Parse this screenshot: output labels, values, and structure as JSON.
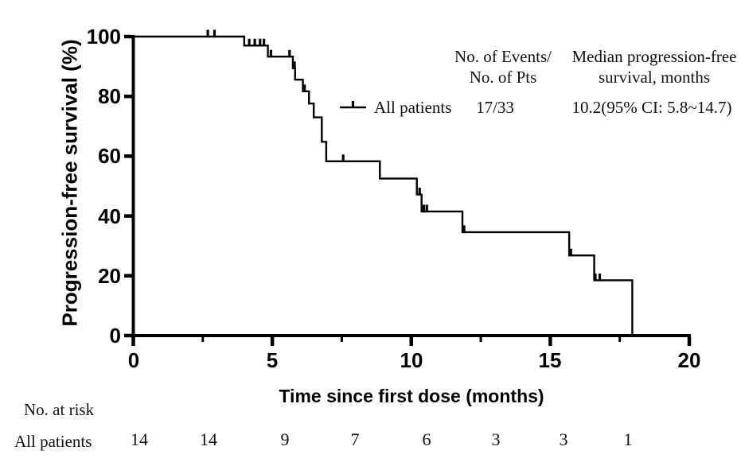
{
  "chart_data": {
    "type": "line",
    "subtype": "kaplan-meier-step-curve",
    "title": "",
    "xlabel": "Time since first dose (months)",
    "ylabel": "Progression-free survival (%)",
    "xlim": [
      0,
      20
    ],
    "ylim": [
      0,
      100
    ],
    "xticks": [
      0,
      5,
      10,
      15,
      20
    ],
    "xminorticks": [
      2.5,
      7.5,
      12.5,
      17.5
    ],
    "yticks": [
      100,
      80,
      60,
      40,
      20,
      0
    ],
    "grid": false,
    "legend_position": "top-right-inside",
    "legend": {
      "col1_header_line1": "No. of Events/",
      "col1_header_line2": "No. of Pts",
      "col2_header_line1": "Median progression-free",
      "col2_header_line2": "survival, months"
    },
    "series": [
      {
        "name": "All patients",
        "events_over_pts": "17/33",
        "median_pfs": "10.2(95% CI: 5.8~14.7)",
        "color": "#000000",
        "start": [
          0,
          100
        ],
        "steps": [
          [
            3.99,
            97.0
          ],
          [
            4.84,
            93.3
          ],
          [
            5.74,
            89.4
          ],
          [
            5.82,
            85.6
          ],
          [
            6.1,
            81.7
          ],
          [
            6.32,
            77.6
          ],
          [
            6.49,
            73.0
          ],
          [
            6.78,
            64.8
          ],
          [
            6.94,
            58.3
          ],
          [
            8.87,
            52.5
          ],
          [
            10.2,
            47.2
          ],
          [
            10.37,
            41.5
          ],
          [
            11.84,
            34.6
          ],
          [
            15.68,
            26.8
          ],
          [
            16.58,
            18.5
          ],
          [
            17.95,
            0
          ]
        ],
        "censors": [
          [
            2.68,
            100
          ],
          [
            2.92,
            100
          ],
          [
            4.17,
            97.0
          ],
          [
            4.37,
            97.0
          ],
          [
            4.56,
            97.0
          ],
          [
            4.7,
            97.0
          ],
          [
            4.95,
            93.3
          ],
          [
            5.62,
            93.3
          ],
          [
            5.8,
            89.4
          ],
          [
            6.16,
            81.7
          ],
          [
            7.55,
            58.3
          ],
          [
            10.3,
            47.2
          ],
          [
            10.45,
            41.5
          ],
          [
            10.56,
            41.5
          ],
          [
            11.9,
            34.6
          ],
          [
            15.74,
            26.8
          ],
          [
            16.62,
            18.5
          ],
          [
            16.78,
            18.5
          ]
        ]
      }
    ],
    "at_risk": {
      "label": "No. at risk",
      "row_label": "All patients",
      "values": [
        14,
        14,
        9,
        7,
        6,
        3,
        3,
        1
      ]
    },
    "colors": {
      "curve": "#000000",
      "axis": "#000000",
      "text": "#000000"
    }
  }
}
